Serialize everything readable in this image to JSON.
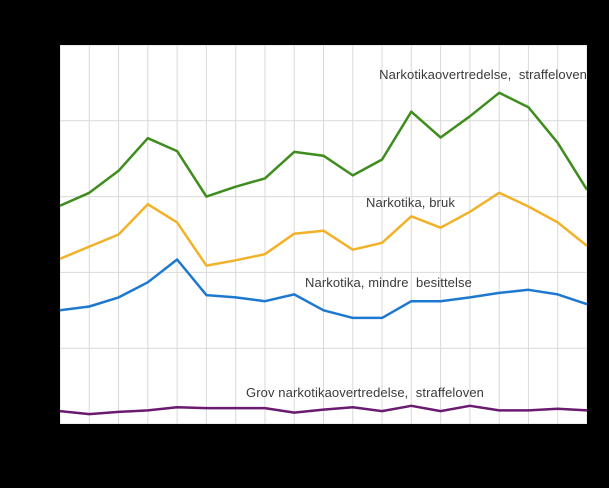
{
  "colors": {
    "background": "#000000",
    "plot_background": "#ffffff",
    "gridline": "#d9d9d9",
    "label_text": "#3a3a3a"
  },
  "chart_data": {
    "type": "line",
    "title": "",
    "xlabel": "",
    "ylabel": "",
    "n_points": 19,
    "ylim": [
      0,
      5
    ],
    "grid": true,
    "axis_tick_labels_visible": false,
    "legend_position": "inline-labels-next-to-lines",
    "y_units_note": "values in horizontal-gridline intervals above plot bottom (no numeric axis labels visible)",
    "series": [
      {
        "name": "Narkotikaovertredelse,  straffeloven",
        "color": "#3e8d1e",
        "values": [
          2.88,
          3.05,
          3.34,
          3.77,
          3.6,
          3.0,
          3.13,
          3.24,
          3.59,
          3.54,
          3.28,
          3.49,
          4.12,
          3.78,
          4.06,
          4.37,
          4.18,
          3.71,
          3.09
        ]
      },
      {
        "name": "Narkotika, bruk",
        "color": "#f1b229",
        "values": [
          2.18,
          2.34,
          2.5,
          2.9,
          2.66,
          2.09,
          2.16,
          2.24,
          2.51,
          2.55,
          2.3,
          2.39,
          2.74,
          2.59,
          2.8,
          3.05,
          2.87,
          2.66,
          2.35
        ]
      },
      {
        "name": "Narkotika, mindre  besittelse",
        "color": "#1e78d0",
        "values": [
          1.5,
          1.55,
          1.67,
          1.87,
          2.17,
          1.7,
          1.67,
          1.62,
          1.71,
          1.5,
          1.4,
          1.4,
          1.62,
          1.62,
          1.67,
          1.73,
          1.77,
          1.71,
          1.58
        ]
      },
      {
        "name": "Grov narkotikaovertredelse,  straffeloven",
        "color": "#6a1a70",
        "values": [
          0.17,
          0.13,
          0.16,
          0.18,
          0.22,
          0.21,
          0.21,
          0.21,
          0.15,
          0.19,
          0.22,
          0.17,
          0.24,
          0.17,
          0.24,
          0.18,
          0.18,
          0.2,
          0.18
        ]
      }
    ]
  }
}
